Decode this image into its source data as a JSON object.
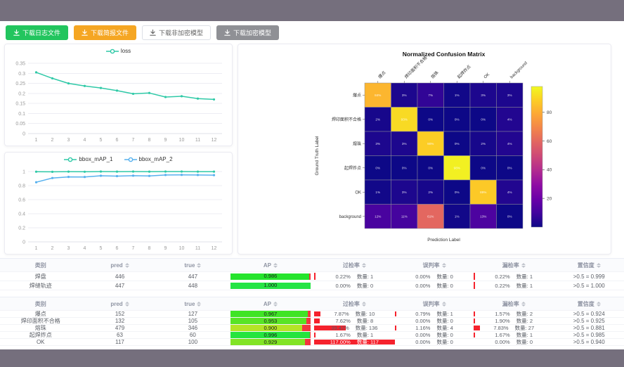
{
  "toolbar": {
    "buttons": [
      {
        "label": "下载日志文件",
        "variant": "success",
        "icon": "download-icon"
      },
      {
        "label": "下载简报文件",
        "variant": "warning",
        "icon": "download-icon"
      },
      {
        "label": "下载非加密模型",
        "variant": "plain",
        "icon": "download-icon"
      },
      {
        "label": "下载加密模型",
        "variant": "info",
        "icon": "download-icon"
      }
    ]
  },
  "count_label": "数量",
  "chart_data": [
    {
      "type": "line",
      "title": "",
      "x": [
        1,
        2,
        3,
        4,
        5,
        6,
        7,
        8,
        9,
        10,
        11,
        12
      ],
      "series": [
        {
          "name": "loss",
          "color": "#2fc9a7",
          "values": [
            0.305,
            0.275,
            0.25,
            0.237,
            0.227,
            0.214,
            0.198,
            0.202,
            0.182,
            0.186,
            0.174,
            0.17
          ]
        }
      ],
      "ylim": [
        0,
        0.35
      ],
      "yticks": [
        0,
        0.05,
        0.1,
        0.15,
        0.2,
        0.25,
        0.3,
        0.35
      ],
      "grid": true,
      "legend_position": "top"
    },
    {
      "type": "line",
      "title": "",
      "x": [
        1,
        2,
        3,
        4,
        5,
        6,
        7,
        8,
        9,
        10,
        11,
        12
      ],
      "series": [
        {
          "name": "bbox_mAP_1",
          "color": "#2fc9a7",
          "values": [
            0.998,
            0.996,
            0.999,
            0.997,
            1.0,
            0.999,
            1.0,
            0.999,
            1.0,
            1.0,
            0.999,
            0.999
          ]
        },
        {
          "name": "bbox_mAP_2",
          "color": "#57b1ee",
          "values": [
            0.848,
            0.908,
            0.924,
            0.923,
            0.94,
            0.935,
            0.941,
            0.938,
            0.951,
            0.953,
            0.951,
            0.949
          ]
        }
      ],
      "ylim": [
        0,
        1
      ],
      "yticks": [
        0,
        0.2,
        0.4,
        0.6,
        0.8,
        1
      ],
      "grid": true,
      "legend_position": "top"
    },
    {
      "type": "heatmap",
      "title": "Normalized Confusion Matrix",
      "xlabel": "Prediction Label",
      "ylabel": "Ground Truth Label",
      "categories": [
        "爆点",
        "焊印面积不合格",
        "熔珠",
        "起焊炸点",
        "OK",
        "background"
      ],
      "matrix": [
        [
          84,
          3,
          7,
          1,
          3,
          3
        ],
        [
          2,
          93,
          0,
          0,
          0,
          4
        ],
        [
          3,
          3,
          90,
          0,
          2,
          4
        ],
        [
          0,
          0,
          0,
          98,
          0,
          0
        ],
        [
          1,
          3,
          2,
          0,
          89,
          4
        ],
        [
          12,
          11,
          61,
          1,
          13,
          0
        ]
      ],
      "value_suffix": "%",
      "colormap": "plasma",
      "colorbar_ticks": [
        20,
        40,
        60,
        80
      ],
      "vmin": 0,
      "vmax": 98
    }
  ],
  "tables": [
    {
      "headers": [
        {
          "label": "类别",
          "sortable": false
        },
        {
          "label": "pred",
          "sortable": true
        },
        {
          "label": "true",
          "sortable": true
        },
        {
          "label": "AP",
          "sortable": true
        },
        {
          "label": "过检率",
          "sortable": true
        },
        {
          "label": "误判率",
          "sortable": true
        },
        {
          "label": "漏检率",
          "sortable": true
        },
        {
          "label": "置信度",
          "sortable": true
        }
      ],
      "rows": [
        {
          "class": "焊盘",
          "pred": 446,
          "true": 447,
          "ap": 0.986,
          "over": {
            "pct": "0.22%",
            "count": 1,
            "bar": 0.22
          },
          "mis": {
            "pct": "0.00%",
            "count": 0,
            "bar": 0
          },
          "miss": {
            "pct": "0.22%",
            "count": 1,
            "bar": 0.22
          },
          "conf": ">0.5 = 0.999"
        },
        {
          "class": "焊缝轨迹",
          "pred": 447,
          "true": 448,
          "ap": 1.0,
          "over": {
            "pct": "0.00%",
            "count": 0,
            "bar": 0
          },
          "mis": {
            "pct": "0.00%",
            "count": 0,
            "bar": 0
          },
          "miss": {
            "pct": "0.22%",
            "count": 1,
            "bar": 0.22
          },
          "conf": ">0.5 = 1.000"
        }
      ]
    },
    {
      "headers": [
        {
          "label": "类别",
          "sortable": false
        },
        {
          "label": "pred",
          "sortable": true
        },
        {
          "label": "true",
          "sortable": true
        },
        {
          "label": "AP",
          "sortable": true
        },
        {
          "label": "过检率",
          "sortable": true
        },
        {
          "label": "误判率",
          "sortable": true
        },
        {
          "label": "漏检率",
          "sortable": true
        },
        {
          "label": "置信度",
          "sortable": true
        }
      ],
      "rows": [
        {
          "class": "爆点",
          "pred": 152,
          "true": 127,
          "ap": 0.967,
          "over": {
            "pct": "7.87%",
            "count": 10,
            "bar": 7.87
          },
          "mis": {
            "pct": "0.79%",
            "count": 1,
            "bar": 0.79
          },
          "miss": {
            "pct": "1.57%",
            "count": 2,
            "bar": 1.57
          },
          "conf": ">0.5 = 0.924"
        },
        {
          "class": "焊印面积不合格",
          "pred": 132,
          "true": 105,
          "ap": 0.953,
          "over": {
            "pct": "7.62%",
            "count": 8,
            "bar": 7.62
          },
          "mis": {
            "pct": "0.00%",
            "count": 0,
            "bar": 0
          },
          "miss": {
            "pct": "1.90%",
            "count": 2,
            "bar": 1.9
          },
          "conf": ">0.5 = 0.925"
        },
        {
          "class": "熔珠",
          "pred": 479,
          "true": 346,
          "ap": 0.9,
          "over": {
            "pct": "39.42%",
            "count": 136,
            "bar": 39.42
          },
          "mis": {
            "pct": "1.16%",
            "count": 4,
            "bar": 1.16
          },
          "miss": {
            "pct": "7.83%",
            "count": 27,
            "bar": 7.83
          },
          "conf": ">0.5 = 0.881"
        },
        {
          "class": "起焊炸点",
          "pred": 63,
          "true": 60,
          "ap": 0.996,
          "over": {
            "pct": "1.67%",
            "count": 1,
            "bar": 1.67
          },
          "mis": {
            "pct": "0.00%",
            "count": 0,
            "bar": 0
          },
          "miss": {
            "pct": "1.67%",
            "count": 1,
            "bar": 1.67
          },
          "conf": ">0.5 = 0.985"
        },
        {
          "class": "OK",
          "pred": 117,
          "true": 100,
          "ap": 0.929,
          "over": {
            "pct": "117.00%",
            "count": 117,
            "bar": 117
          },
          "mis": {
            "pct": "0.00%",
            "count": 0,
            "bar": 0
          },
          "miss": {
            "pct": "0.00%",
            "count": 0,
            "bar": 0
          },
          "conf": ">0.5 = 0.940"
        }
      ]
    }
  ],
  "colors": {
    "top_bar": "#756f7d",
    "ap_bar_track": "#f5353f",
    "rate_bar": "#f5222d",
    "button_success": "#22c55e",
    "button_warning": "#f5a623",
    "button_info": "#8f9095"
  }
}
